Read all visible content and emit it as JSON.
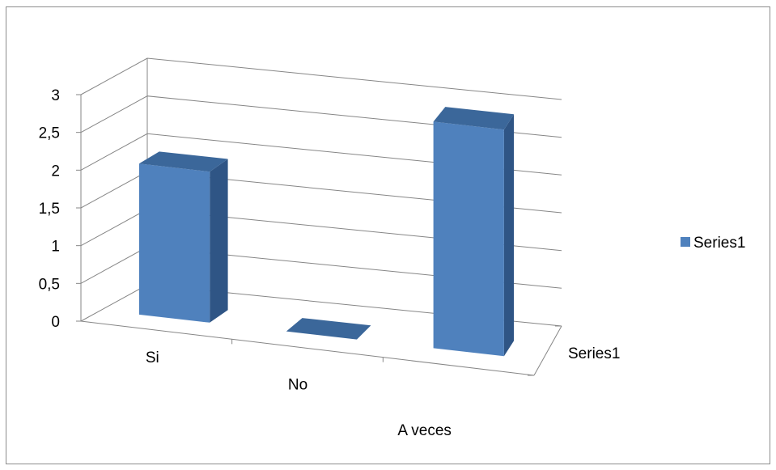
{
  "chart_data": {
    "type": "bar",
    "style": "3d-column",
    "categories": [
      "Si",
      "No",
      "A veces"
    ],
    "series": [
      {
        "name": "Series1",
        "values": [
          2,
          0,
          3
        ]
      }
    ],
    "y_ticks": [
      "0",
      "0,5",
      "1",
      "1,5",
      "2",
      "2,5",
      "3"
    ],
    "ylim": [
      0,
      3
    ],
    "depth_axis_label": "Series1",
    "grid": true,
    "legend": {
      "position": "right",
      "entries": [
        "Series1"
      ]
    },
    "colors": {
      "front": "#4f81bd",
      "side": "#2f5585",
      "top": "#3b679a"
    }
  }
}
